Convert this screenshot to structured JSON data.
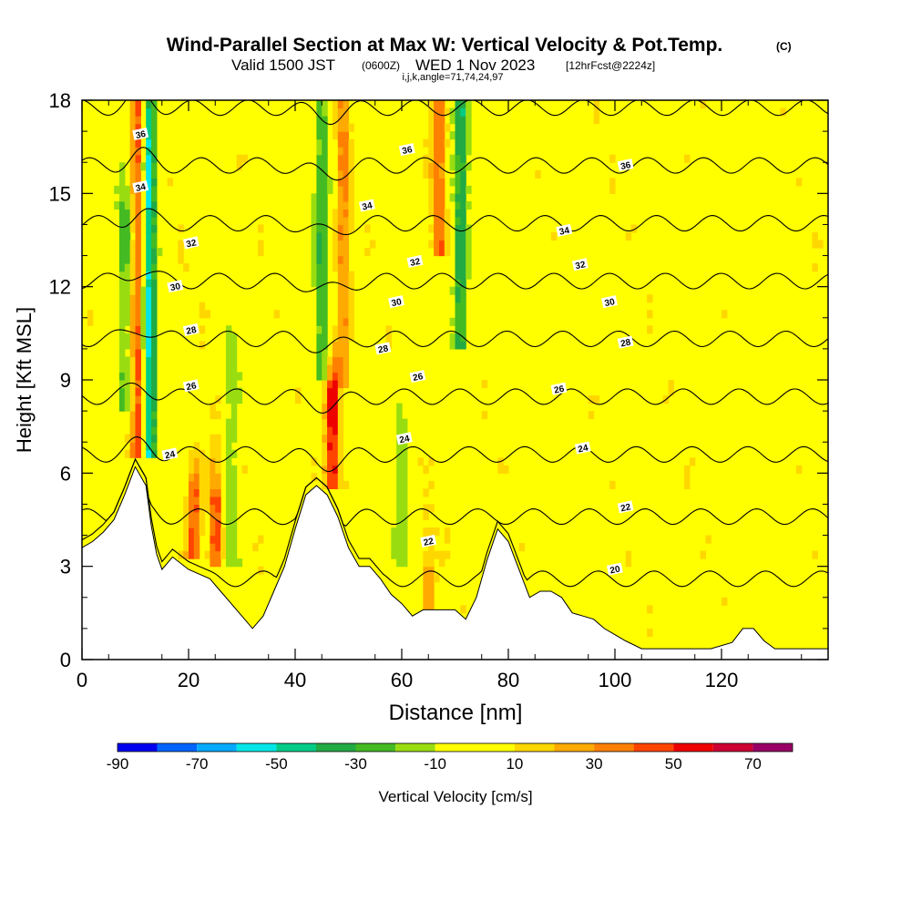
{
  "titles": {
    "main": "Wind-Parallel Section at Max W: Vertical Velocity & Pot.Temp.",
    "main_suffix": "(C)",
    "valid_prefix": "Valid 1500 JST",
    "valid_utc": "(0600Z)",
    "valid_date": "WED 1 Nov 2023",
    "forecast": "[12hrFcst@2224z]",
    "indices": "i,j,k,angle=71,74,24,97"
  },
  "chart_data": {
    "type": "heatmap",
    "title": "Wind-Parallel Section at Max W: Vertical Velocity & Pot.Temp.",
    "xlabel": "Distance [nm]",
    "ylabel": "Height [Kft MSL]",
    "xlim": [
      0,
      140
    ],
    "ylim": [
      0,
      18
    ],
    "x_ticks": [
      "0",
      "20",
      "40",
      "60",
      "80",
      "100",
      "120"
    ],
    "x_tick_values": [
      0,
      20,
      40,
      60,
      80,
      100,
      120
    ],
    "y_ticks": [
      "0",
      "3",
      "6",
      "9",
      "12",
      "15",
      "18"
    ],
    "y_tick_values": [
      0,
      3,
      6,
      9,
      12,
      15,
      18
    ],
    "colorbar": {
      "label": "Vertical Velocity [cm/s]",
      "tick_labels": [
        "-90",
        "-70",
        "-50",
        "-30",
        "-10",
        "10",
        "30",
        "50",
        "70"
      ],
      "tick_values": [
        -90,
        -70,
        -50,
        -30,
        -10,
        10,
        30,
        50,
        70
      ],
      "bin_edges": [
        -90,
        -80,
        -70,
        -60,
        -50,
        -40,
        -30,
        -20,
        -10,
        10,
        20,
        30,
        40,
        50,
        60,
        70,
        80
      ],
      "colors": [
        "#0000f0",
        "#0064ff",
        "#00aaff",
        "#00e6e6",
        "#00cc88",
        "#22aa44",
        "#44bb22",
        "#99dd11",
        "#ffff00",
        "#ffd700",
        "#ffaa00",
        "#ff8000",
        "#ff4400",
        "#ee0000",
        "#cc0033",
        "#990066",
        "#660099"
      ]
    },
    "terrain_kft": [
      [
        0,
        3.6
      ],
      [
        2,
        3.8
      ],
      [
        4,
        4.1
      ],
      [
        6,
        4.5
      ],
      [
        8,
        5.3
      ],
      [
        10,
        6.2
      ],
      [
        12,
        5.6
      ],
      [
        13,
        4.3
      ],
      [
        14,
        3.4
      ],
      [
        15,
        2.9
      ],
      [
        17,
        3.3
      ],
      [
        20,
        2.9
      ],
      [
        24,
        2.6
      ],
      [
        26,
        2.2
      ],
      [
        28,
        1.8
      ],
      [
        30,
        1.4
      ],
      [
        32,
        1.0
      ],
      [
        34,
        1.4
      ],
      [
        36,
        2.2
      ],
      [
        38,
        3.0
      ],
      [
        40,
        4.2
      ],
      [
        42,
        5.3
      ],
      [
        44,
        5.6
      ],
      [
        46,
        5.3
      ],
      [
        48,
        4.6
      ],
      [
        50,
        3.6
      ],
      [
        52,
        3.0
      ],
      [
        54,
        3.0
      ],
      [
        56,
        2.6
      ],
      [
        58,
        2.1
      ],
      [
        60,
        1.8
      ],
      [
        62,
        1.4
      ],
      [
        64,
        1.6
      ],
      [
        66,
        1.6
      ],
      [
        70,
        1.6
      ],
      [
        72,
        1.3
      ],
      [
        74,
        2.0
      ],
      [
        76,
        3.2
      ],
      [
        78,
        4.2
      ],
      [
        80,
        3.8
      ],
      [
        82,
        2.9
      ],
      [
        84,
        2.0
      ],
      [
        86,
        2.2
      ],
      [
        88,
        2.2
      ],
      [
        90,
        2.0
      ],
      [
        92,
        1.5
      ],
      [
        94,
        1.4
      ],
      [
        96,
        1.3
      ],
      [
        98,
        1.0
      ],
      [
        100,
        0.8
      ],
      [
        102,
        0.6
      ],
      [
        105,
        0.35
      ],
      [
        110,
        0.35
      ],
      [
        118,
        0.35
      ],
      [
        122,
        0.55
      ],
      [
        124,
        1.0
      ],
      [
        126,
        1.0
      ],
      [
        128,
        0.6
      ],
      [
        130,
        0.35
      ],
      [
        138,
        0.35
      ]
    ],
    "updraft_cores": [
      {
        "x": 10.5,
        "y_bottom": 6.5,
        "y_top": 18,
        "peak_cm_s": 45
      },
      {
        "x": 21,
        "y_bottom": 3.2,
        "y_top": 5.5,
        "peak_cm_s": 45
      },
      {
        "x": 25,
        "y_bottom": 3.0,
        "y_top": 5.3,
        "peak_cm_s": 45
      },
      {
        "x": 47,
        "y_bottom": 5.4,
        "y_top": 8.8,
        "peak_cm_s": 55
      },
      {
        "x": 49,
        "y_bottom": 8.8,
        "y_top": 18,
        "peak_cm_s": 30
      },
      {
        "x": 67,
        "y_bottom": 13.0,
        "y_top": 18,
        "peak_cm_s": 35
      },
      {
        "x": 65,
        "y_bottom": 1.6,
        "y_top": 2.8,
        "peak_cm_s": 25
      }
    ],
    "downdraft_cores": [
      {
        "x": 12.5,
        "y_bottom": 6.5,
        "y_top": 18,
        "min_cm_s": -55
      },
      {
        "x": 8,
        "y_bottom": 8,
        "y_top": 15,
        "min_cm_s": -25
      },
      {
        "x": 28,
        "y_bottom": 3.0,
        "y_top": 10,
        "min_cm_s": -20
      },
      {
        "x": 45,
        "y_bottom": 9.0,
        "y_top": 18,
        "min_cm_s": -30
      },
      {
        "x": 71,
        "y_bottom": 10.0,
        "y_top": 18,
        "min_cm_s": -40
      },
      {
        "x": 60,
        "y_bottom": 3.0,
        "y_top": 8.0,
        "min_cm_s": -20
      }
    ],
    "theta_contours_c": [
      20,
      22,
      24,
      26,
      28,
      30,
      32,
      34,
      36
    ],
    "theta_contour_labels": [
      {
        "text": "36",
        "x": 11,
        "y": 16.9
      },
      {
        "text": "34",
        "x": 11,
        "y": 15.2
      },
      {
        "text": "32",
        "x": 20.5,
        "y": 13.4
      },
      {
        "text": "30",
        "x": 17.5,
        "y": 12.0
      },
      {
        "text": "28",
        "x": 20.5,
        "y": 10.6
      },
      {
        "text": "26",
        "x": 20.5,
        "y": 8.8
      },
      {
        "text": "24",
        "x": 16.5,
        "y": 6.6
      },
      {
        "text": "36",
        "x": 61,
        "y": 16.4
      },
      {
        "text": "34",
        "x": 53.5,
        "y": 14.6
      },
      {
        "text": "32",
        "x": 62.5,
        "y": 12.8
      },
      {
        "text": "30",
        "x": 59,
        "y": 11.5
      },
      {
        "text": "28",
        "x": 56.5,
        "y": 10.0
      },
      {
        "text": "26",
        "x": 63,
        "y": 9.1
      },
      {
        "text": "24",
        "x": 60.5,
        "y": 7.1
      },
      {
        "text": "22",
        "x": 65,
        "y": 3.8
      },
      {
        "text": "36",
        "x": 102,
        "y": 15.9
      },
      {
        "text": "34",
        "x": 90.5,
        "y": 13.8
      },
      {
        "text": "32",
        "x": 93.5,
        "y": 12.7
      },
      {
        "text": "30",
        "x": 99,
        "y": 11.5
      },
      {
        "text": "28",
        "x": 102,
        "y": 10.2
      },
      {
        "text": "26",
        "x": 89.5,
        "y": 8.7
      },
      {
        "text": "24",
        "x": 94,
        "y": 6.8
      },
      {
        "text": "22",
        "x": 102,
        "y": 4.9
      },
      {
        "text": "20",
        "x": 100,
        "y": 2.9
      }
    ]
  }
}
